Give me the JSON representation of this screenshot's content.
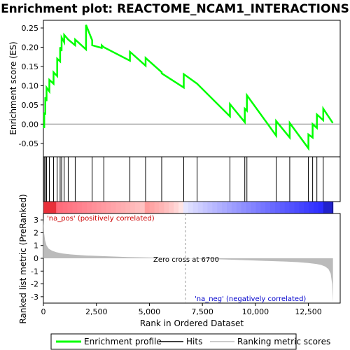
{
  "chart_data": {
    "type": "line",
    "title": "Enrichment plot: REACTOME_NCAM1_INTERACTIONS",
    "top_panel": {
      "ylabel": "Enrichment score (ES)",
      "ylim": [
        -0.085,
        0.27
      ],
      "yticks": [
        -0.05,
        0.0,
        0.05,
        0.1,
        0.15,
        0.2,
        0.25
      ],
      "ytick_labels": [
        "-0.05",
        "0.00",
        "0.05",
        "0.10",
        "0.15",
        "0.20",
        "0.25"
      ],
      "series": [
        {
          "name": "Enrichment profile",
          "color": "#00ff00",
          "x": [
            0,
            40,
            40,
            90,
            90,
            150,
            150,
            280,
            280,
            480,
            480,
            650,
            650,
            790,
            790,
            860,
            860,
            980,
            980,
            1170,
            1170,
            1500,
            1500,
            2010,
            2010,
            2300,
            2300,
            2750,
            2750,
            2850,
            2850,
            4080,
            4080,
            4820,
            4820,
            5580,
            5580,
            6620,
            6620,
            7250,
            7250,
            8800,
            8800,
            9500,
            9500,
            9600,
            9600,
            10980,
            10980,
            11620,
            11620,
            12500,
            12500,
            12700,
            12700,
            12900,
            12900,
            13200,
            13200,
            13650
          ],
          "y": [
            -0.005,
            -0.01,
            0.03,
            0.025,
            0.07,
            0.06,
            0.095,
            0.085,
            0.115,
            0.105,
            0.135,
            0.125,
            0.17,
            0.163,
            0.2,
            0.19,
            0.225,
            0.213,
            0.232,
            0.22,
            0.22,
            0.205,
            0.22,
            0.194,
            0.258,
            0.218,
            0.205,
            0.198,
            0.205,
            0.2,
            0.2,
            0.165,
            0.188,
            0.152,
            0.172,
            0.135,
            0.132,
            0.095,
            0.13,
            0.105,
            0.105,
            0.02,
            0.052,
            0.005,
            0.04,
            0.035,
            0.075,
            -0.03,
            0.008,
            -0.035,
            0.003,
            -0.063,
            -0.027,
            -0.035,
            0.0,
            -0.01,
            0.025,
            0.01,
            0.04,
            0.003
          ]
        }
      ]
    },
    "hits": {
      "name": "Hits",
      "positions": [
        40,
        90,
        150,
        280,
        480,
        650,
        790,
        860,
        980,
        1170,
        1500,
        2300,
        2850,
        4080,
        4820,
        5580,
        6620,
        7250,
        8800,
        9500,
        9600,
        10980,
        11620,
        12500,
        12700,
        12900,
        13200
      ]
    },
    "bottom_panel": {
      "name": "Ranking metric scores",
      "ylabel": "Ranked list metric (PreRanked)",
      "ylim": [
        -3.5,
        3.5
      ],
      "yticks": [
        -3,
        -2,
        -1,
        0,
        1,
        2,
        3
      ],
      "ytick_labels": [
        "-3",
        "-2",
        "-1",
        "0",
        "1",
        "2",
        "3"
      ],
      "x": [
        0,
        30,
        80,
        150,
        250,
        400,
        600,
        900,
        1300,
        2000,
        3000,
        4000,
        5000,
        6000,
        6700,
        7500,
        8500,
        9500,
        10500,
        11500,
        12000,
        12500,
        12900,
        13100,
        13300,
        13450,
        13550,
        13620,
        13660
      ],
      "y": [
        3.2,
        2.0,
        1.4,
        1.0,
        0.75,
        0.6,
        0.48,
        0.38,
        0.3,
        0.22,
        0.16,
        0.1,
        0.06,
        0.02,
        0.0,
        -0.04,
        -0.09,
        -0.14,
        -0.2,
        -0.26,
        -0.3,
        -0.37,
        -0.45,
        -0.52,
        -0.65,
        -0.85,
        -1.2,
        -2.0,
        -3.45
      ],
      "zero_cross_label": "Zero cross at 6700",
      "zero_cross": 6700,
      "pos_label": "'na_pos' (positively correlated)",
      "neg_label": "'na_neg' (negatively correlated)"
    },
    "xlabel": "Rank in Ordered Dataset",
    "xlim": [
      0,
      14000
    ],
    "xticks": [
      0,
      2500,
      5000,
      7500,
      10000,
      12500
    ],
    "xtick_labels": [
      "0",
      "2,500",
      "5,000",
      "7,500",
      "10,000",
      "12,500"
    ],
    "n_genes": 13660,
    "legend": {
      "placement": "bottom",
      "entries": [
        "Enrichment profile",
        "Hits",
        "Ranking metric scores"
      ]
    },
    "colors": {
      "profile": "#00ff00",
      "pos_label": "#cc0000",
      "neg_label": "#0000cc",
      "metric_fill": "#bbbbbb"
    }
  }
}
